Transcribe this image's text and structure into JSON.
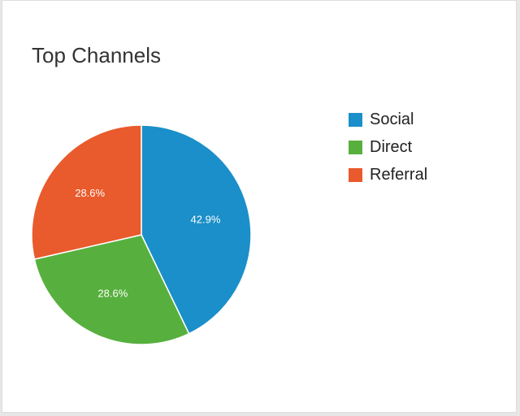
{
  "card": {
    "title": "Top Channels"
  },
  "chart_data": {
    "type": "pie",
    "title": "Top Channels",
    "legend_position": "right",
    "slices": [
      {
        "label": "Social",
        "value": 42.9,
        "display": "42.9%",
        "color": "#1a8fc9"
      },
      {
        "label": "Direct",
        "value": 28.6,
        "display": "28.6%",
        "color": "#57b03e"
      },
      {
        "label": "Referral",
        "value": 28.6,
        "display": "28.6%",
        "color": "#e95a2c"
      }
    ]
  }
}
